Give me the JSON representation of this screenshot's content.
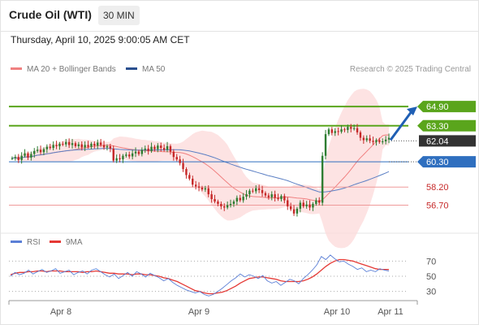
{
  "header": {
    "title": "Crude Oil (WTI)",
    "interval": "30 MIN",
    "timestamp": "Thursday, April 10, 2025 9:00:05 AM CET"
  },
  "legend": {
    "ma20": "MA 20 + Bollinger Bands",
    "ma50": "MA 50",
    "research": "Research © 2025 Trading Central"
  },
  "rsi_legend": {
    "rsi": "RSI",
    "ma": "9MA"
  },
  "colors": {
    "bull": "#2e7d32",
    "bear": "#c62828",
    "resistance": "#5aa51c",
    "support": "#ef9a9a",
    "pivot": "#2f6fbf",
    "bands": "#fcd9d9",
    "ma20": "#f08080",
    "ma50": "#5b7fc4",
    "rsi": "#5b7fd6",
    "rsi_ma": "#e53935",
    "current": "#333333",
    "arrow": "#1f5fb4"
  },
  "chart_data": [
    {
      "type": "candlestick",
      "title": "Crude Oil (WTI)",
      "interval": "30 MIN",
      "y_range": [
        54.5,
        67.0
      ],
      "x_ticks": [
        "Apr 8",
        "Apr 9",
        "Apr 10",
        "Apr 11"
      ],
      "current_price": 62.04,
      "levels": [
        {
          "label": "64.90",
          "value": 64.9,
          "kind": "resistance"
        },
        {
          "label": "63.30",
          "value": 63.3,
          "kind": "resistance"
        },
        {
          "label": "60.30",
          "value": 60.3,
          "kind": "pivot"
        },
        {
          "label": "58.20",
          "value": 58.2,
          "kind": "support"
        },
        {
          "label": "56.70",
          "value": 56.7,
          "kind": "support"
        }
      ],
      "bias": "up",
      "series": [
        {
          "name": "MA 20 + Bollinger Bands"
        },
        {
          "name": "MA 50"
        }
      ],
      "close": [
        60.6,
        60.7,
        60.45,
        60.8,
        61.0,
        60.65,
        60.95,
        61.2,
        61.3,
        61.1,
        61.35,
        61.55,
        61.45,
        61.7,
        61.6,
        61.8,
        61.75,
        61.95,
        61.7,
        61.85,
        61.6,
        61.75,
        61.5,
        61.7,
        61.55,
        61.8,
        61.65,
        61.9,
        61.7,
        61.5,
        61.6,
        61.4,
        60.4,
        60.6,
        60.5,
        60.8,
        60.9,
        60.75,
        61.0,
        61.15,
        60.95,
        61.3,
        61.4,
        61.2,
        61.55,
        61.35,
        61.65,
        61.45,
        61.3,
        61.6,
        61.15,
        60.7,
        60.5,
        60.2,
        59.7,
        59.2,
        58.9,
        58.4,
        58.25,
        58.15,
        58.0,
        58.1,
        57.6,
        57.2,
        57.0,
        56.8,
        56.6,
        56.5,
        56.7,
        56.8,
        57.0,
        57.3,
        57.1,
        57.4,
        57.6,
        57.9,
        57.85,
        58.1,
        57.95,
        57.7,
        57.5,
        57.35,
        57.6,
        57.3,
        57.2,
        57.45,
        57.1,
        56.6,
        56.35,
        56.0,
        56.4,
        56.9,
        56.6,
        56.75,
        56.5,
        56.8,
        57.1,
        56.9,
        60.8,
        62.6,
        63.0,
        62.7,
        62.85,
        62.8,
        63.0,
        62.95,
        63.2,
        63.05,
        63.1,
        62.75,
        62.3,
        62.1,
        62.25,
        62.05,
        61.95,
        62.1,
        61.95,
        62.0,
        62.15,
        62.3
      ]
    },
    {
      "type": "line",
      "title": "RSI",
      "y_ticks": [
        70,
        50,
        30
      ],
      "series": [
        {
          "name": "RSI",
          "values": [
            50,
            55,
            52,
            54,
            58,
            53,
            56,
            59,
            55,
            57,
            60,
            54,
            56,
            58,
            52,
            55,
            57,
            53,
            58,
            60,
            56,
            52,
            49,
            53,
            47,
            51,
            55,
            50,
            56,
            53,
            49,
            54,
            51,
            48,
            44,
            47,
            42,
            38,
            35,
            32,
            30,
            28,
            30,
            26,
            24,
            26,
            30,
            34,
            39,
            44,
            48,
            53,
            49,
            52,
            50,
            47,
            51,
            44,
            41,
            43,
            38,
            42,
            46,
            44,
            40,
            47,
            52,
            58,
            65,
            76,
            72,
            78,
            73,
            69,
            70,
            66,
            63,
            59,
            61,
            56,
            58,
            56,
            60,
            58,
            57
          ]
        },
        {
          "name": "9MA",
          "values": [
            52,
            54,
            55,
            55,
            56,
            56,
            57,
            57,
            56,
            57,
            57,
            57,
            56,
            56,
            56,
            56,
            55,
            56,
            56,
            57,
            56,
            55,
            54,
            54,
            53,
            53,
            53,
            52,
            53,
            53,
            52,
            52,
            51,
            50,
            48,
            47,
            45,
            43,
            40,
            37,
            34,
            31,
            30,
            28,
            27,
            27,
            28,
            29,
            31,
            34,
            37,
            41,
            44,
            47,
            48,
            49,
            49,
            48,
            47,
            46,
            44,
            43,
            43,
            43,
            43,
            44,
            46,
            49,
            53,
            58,
            63,
            67,
            70,
            72,
            72,
            71,
            70,
            68,
            66,
            64,
            62,
            60,
            59,
            59,
            59
          ]
        }
      ]
    }
  ]
}
